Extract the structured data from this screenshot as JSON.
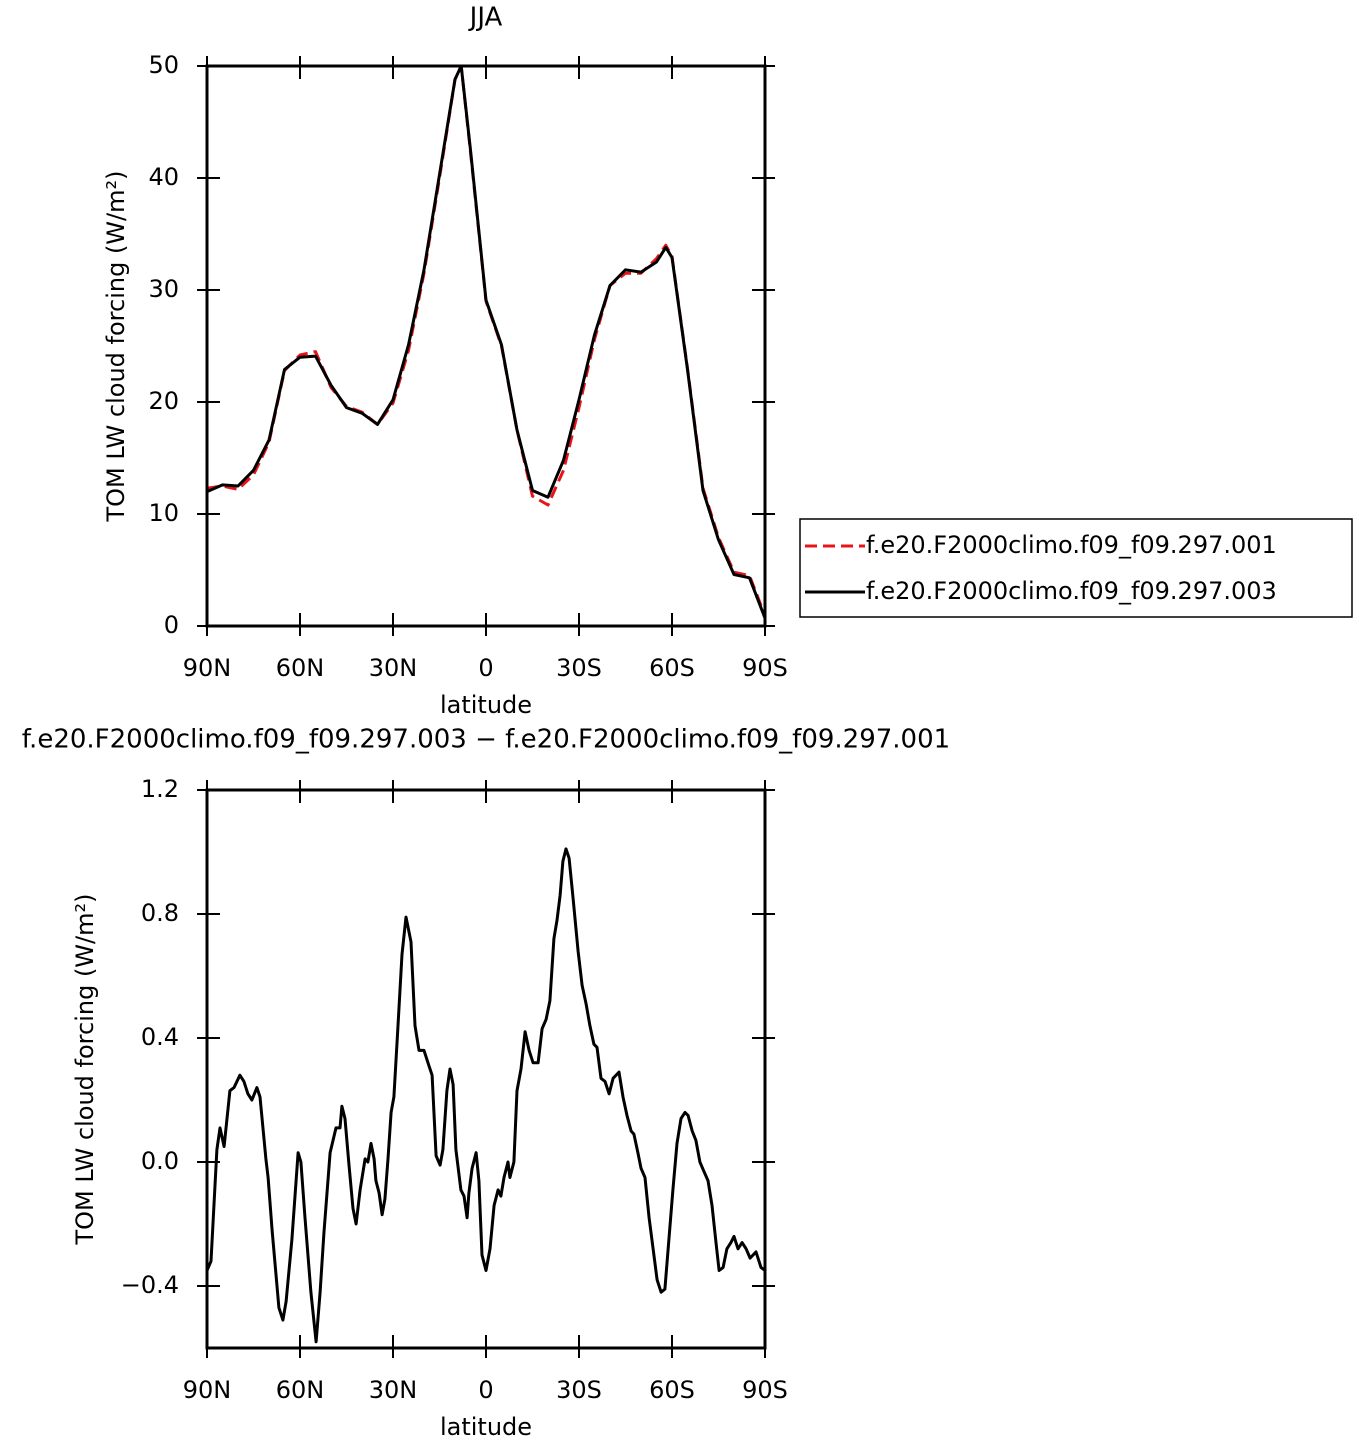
{
  "chart_data": [
    {
      "type": "line",
      "title": "JJA",
      "xlabel": "latitude",
      "ylabel": "TOM LW cloud forcing (W/m²)",
      "xlim": [
        90,
        -90
      ],
      "xticks": [
        {
          "value": 90,
          "label": "90N"
        },
        {
          "value": 60,
          "label": "60N"
        },
        {
          "value": 30,
          "label": "30N"
        },
        0,
        {
          "value": -30,
          "label": "30S"
        },
        {
          "value": -60,
          "label": "60S"
        },
        {
          "value": -90,
          "label": "90S"
        }
      ],
      "ylim": [
        0,
        50
      ],
      "yticks": [
        0,
        10,
        20,
        30,
        40,
        50
      ],
      "legend": "right",
      "x": [
        90,
        85,
        80,
        75,
        70,
        65,
        60,
        55,
        50,
        45,
        40,
        35,
        30,
        25,
        20,
        15,
        10,
        8,
        5,
        0,
        -5,
        -10,
        -15,
        -20,
        -25,
        -30,
        -35,
        -40,
        -45,
        -50,
        -55,
        -58,
        -60,
        -65,
        -70,
        -75,
        -80,
        -85,
        -90
      ],
      "series": [
        {
          "name": "f.e20.F2000climo.f09_f09.297.001",
          "color": "#e8141a",
          "dash": true,
          "values": [
            12.3,
            12.5,
            12.2,
            13.5,
            16.4,
            22.8,
            24.2,
            24.5,
            21.3,
            19.6,
            19.1,
            18.0,
            19.9,
            24.6,
            31.5,
            40.0,
            48.8,
            50.0,
            42.3,
            29.0,
            25.0,
            17.5,
            11.6,
            10.8,
            13.9,
            19.5,
            25.6,
            30.4,
            31.5,
            31.5,
            32.8,
            34.0,
            33.0,
            23.0,
            12.3,
            7.9,
            4.8,
            4.5,
            0.9
          ]
        },
        {
          "name": "f.e20.F2000climo.f09_f09.297.003",
          "color": "#000000",
          "dash": false,
          "values": [
            12.0,
            12.6,
            12.5,
            13.9,
            16.6,
            22.9,
            24.0,
            24.1,
            21.5,
            19.5,
            19.0,
            18.0,
            20.2,
            25.1,
            31.8,
            40.3,
            48.8,
            50.0,
            42.5,
            29.1,
            25.1,
            17.5,
            12.1,
            11.5,
            14.8,
            20.2,
            26.0,
            30.4,
            31.8,
            31.6,
            32.5,
            33.8,
            32.9,
            22.9,
            12.1,
            7.7,
            4.6,
            4.3,
            0.7
          ]
        }
      ]
    },
    {
      "type": "line",
      "title": "f.e20.F2000climo.f09_f09.297.003 − f.e20.F2000climo.f09_f09.297.001",
      "xlabel": "latitude",
      "ylabel": "TOM LW cloud forcing (W/m²)",
      "xlim": [
        90,
        -90
      ],
      "xticks": [
        {
          "value": 90,
          "label": "90N"
        },
        {
          "value": 60,
          "label": "60N"
        },
        {
          "value": 30,
          "label": "30N"
        },
        0,
        {
          "value": -30,
          "label": "30S"
        },
        {
          "value": -60,
          "label": "60S"
        },
        {
          "value": -90,
          "label": "90S"
        }
      ],
      "ylim": [
        -0.6,
        1.2
      ],
      "yticks": [
        {
          "value": -0.4,
          "label": "−0.4"
        },
        {
          "value": 0,
          "label": "0.0"
        },
        0.4,
        0.8,
        1.2
      ],
      "color": "#000000",
      "x": [
        90,
        88.7,
        86.8,
        85.8,
        84.5,
        82.6,
        81.3,
        79.4,
        78.1,
        76.8,
        75.5,
        73.9,
        72.9,
        71.0,
        70.3,
        69.0,
        66.8,
        65.5,
        64.5,
        62.6,
        60.6,
        59.7,
        58.4,
        56.5,
        54.8,
        53.5,
        52.3,
        50.3,
        48.4,
        47.1,
        46.5,
        45.5,
        44.2,
        42.9,
        41.9,
        40.6,
        39.0,
        38.1,
        37.1,
        36.1,
        35.5,
        34.5,
        33.5,
        32.6,
        31.6,
        30.6,
        29.7,
        28.4,
        27.1,
        25.8,
        24.2,
        22.9,
        21.6,
        20.0,
        18.4,
        17.4,
        16.1,
        14.8,
        13.9,
        12.6,
        11.6,
        10.6,
        9.7,
        8.1,
        7.1,
        6.1,
        5.5,
        4.5,
        3.2,
        2.3,
        1.3,
        0,
        -1.3,
        -2.6,
        -3.9,
        -4.8,
        -5.8,
        -7.1,
        -7.7,
        -9.0,
        -10.0,
        -11.3,
        -12.6,
        -13.9,
        -15.2,
        -16.8,
        -18.1,
        -19.4,
        -20.6,
        -21.9,
        -22.9,
        -23.9,
        -24.8,
        -25.8,
        -26.8,
        -28.1,
        -29.7,
        -31.0,
        -32.3,
        -33.5,
        -34.8,
        -35.8,
        -37.1,
        -38.4,
        -39.7,
        -41.0,
        -42.9,
        -44.2,
        -45.5,
        -46.8,
        -47.7,
        -49.0,
        -50.0,
        -51.3,
        -52.6,
        -53.9,
        -55.2,
        -56.5,
        -57.7,
        -59.0,
        -60.3,
        -61.6,
        -62.9,
        -64.2,
        -65.2,
        -66.5,
        -67.7,
        -69.0,
        -70.3,
        -71.6,
        -72.9,
        -74.2,
        -75.2,
        -76.5,
        -77.7,
        -79.0,
        -80.0,
        -81.3,
        -82.6,
        -83.9,
        -85.2,
        -87.1,
        -88.7,
        -90
      ],
      "values": [
        -0.35,
        -0.32,
        0.04,
        0.11,
        0.05,
        0.23,
        0.24,
        0.28,
        0.26,
        0.22,
        0.2,
        0.24,
        0.21,
        0.01,
        -0.05,
        -0.22,
        -0.47,
        -0.51,
        -0.45,
        -0.25,
        0.03,
        0.0,
        -0.18,
        -0.42,
        -0.58,
        -0.42,
        -0.23,
        0.03,
        0.11,
        0.11,
        0.18,
        0.14,
        -0.01,
        -0.15,
        -0.2,
        -0.09,
        0.01,
        0.0,
        0.06,
        0.01,
        -0.06,
        -0.1,
        -0.17,
        -0.12,
        0.01,
        0.16,
        0.21,
        0.44,
        0.67,
        0.79,
        0.71,
        0.44,
        0.36,
        0.36,
        0.31,
        0.28,
        0.02,
        -0.01,
        0.04,
        0.23,
        0.3,
        0.25,
        0.04,
        -0.09,
        -0.11,
        -0.18,
        -0.1,
        -0.02,
        0.03,
        -0.06,
        -0.3,
        -0.35,
        -0.28,
        -0.14,
        -0.09,
        -0.11,
        -0.05,
        0.0,
        -0.05,
        0.0,
        0.23,
        0.3,
        0.42,
        0.36,
        0.32,
        0.32,
        0.43,
        0.46,
        0.52,
        0.72,
        0.78,
        0.86,
        0.97,
        1.01,
        0.98,
        0.85,
        0.68,
        0.57,
        0.51,
        0.44,
        0.38,
        0.37,
        0.27,
        0.26,
        0.22,
        0.27,
        0.29,
        0.21,
        0.15,
        0.1,
        0.09,
        0.03,
        -0.02,
        -0.05,
        -0.18,
        -0.28,
        -0.38,
        -0.42,
        -0.41,
        -0.25,
        -0.09,
        0.06,
        0.14,
        0.16,
        0.15,
        0.1,
        0.07,
        0.0,
        -0.03,
        -0.06,
        -0.14,
        -0.26,
        -0.35,
        -0.34,
        -0.28,
        -0.26,
        -0.24,
        -0.28,
        -0.26,
        -0.28,
        -0.31,
        -0.29,
        -0.34,
        -0.35
      ]
    }
  ]
}
